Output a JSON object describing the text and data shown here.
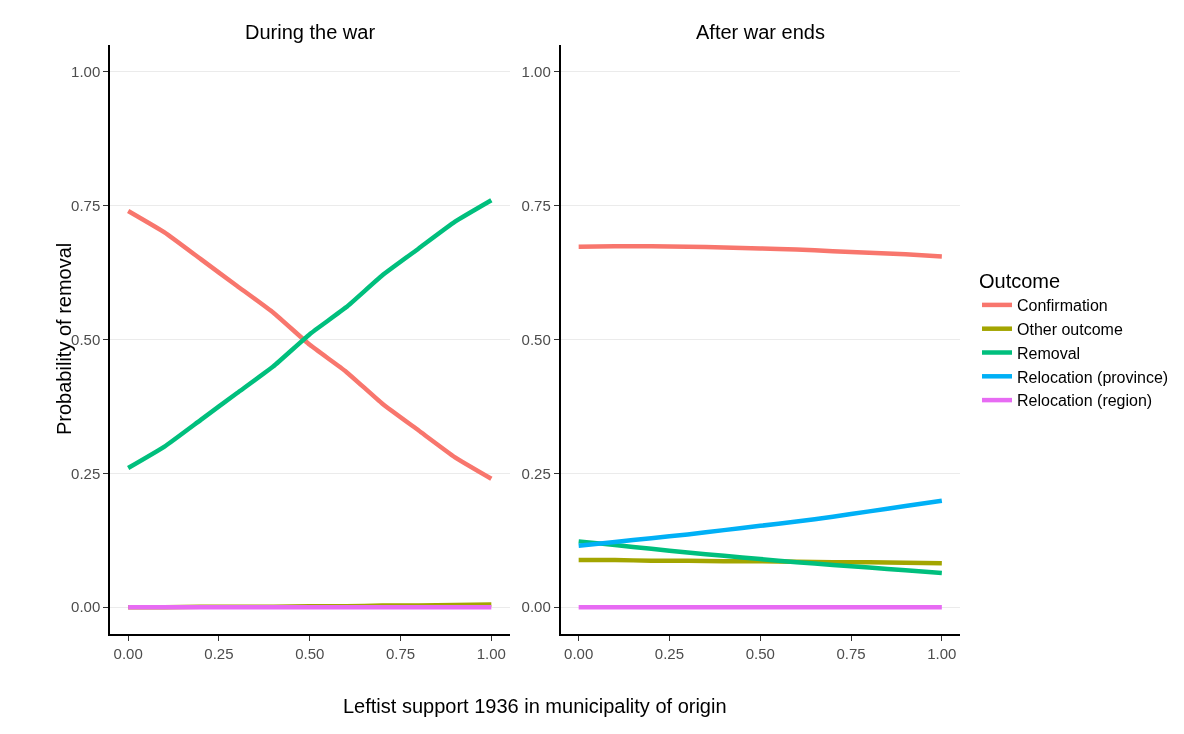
{
  "chart_data": [
    {
      "type": "line",
      "title": "During the war",
      "xlabel": "Leftist support 1936 in municipality of origin",
      "ylabel": "Probability of removal",
      "x": [
        0,
        0.1,
        0.2,
        0.3,
        0.4,
        0.5,
        0.6,
        0.7,
        0.8,
        0.9,
        1.0
      ],
      "series": [
        {
          "name": "Confirmation",
          "color": "#f8766d",
          "values": [
            0.74,
            0.7,
            0.65,
            0.6,
            0.55,
            0.49,
            0.44,
            0.38,
            0.33,
            0.28,
            0.24
          ]
        },
        {
          "name": "Other outcome",
          "color": "#a3a500",
          "values": [
            0.0,
            0.0,
            0.001,
            0.001,
            0.001,
            0.002,
            0.002,
            0.003,
            0.003,
            0.004,
            0.005
          ]
        },
        {
          "name": "Removal",
          "color": "#00bf7d",
          "values": [
            0.26,
            0.3,
            0.35,
            0.4,
            0.45,
            0.51,
            0.56,
            0.62,
            0.67,
            0.72,
            0.76
          ]
        },
        {
          "color": "#00b0f6",
          "values": [
            null,
            null,
            null,
            null,
            null,
            null,
            null,
            null,
            null,
            null,
            null
          ]
        },
        {
          "name": "Relocation (region)",
          "color": "#e76bf3",
          "values": [
            0,
            0,
            0,
            0,
            0,
            0,
            0,
            0,
            0,
            0,
            0
          ]
        }
      ],
      "xlim": [
        -0.05,
        1.05
      ],
      "xticks": [
        {
          "value": 0,
          "label": "0.00"
        },
        {
          "value": 0.25,
          "label": "0.25"
        },
        {
          "value": 0.5,
          "label": "0.50"
        },
        {
          "value": 0.75,
          "label": "0.75"
        },
        {
          "value": 1,
          "label": "1.00"
        }
      ],
      "ylim": [
        -0.05,
        1.05
      ],
      "yticks": [
        {
          "value": 0,
          "label": "0.00"
        },
        {
          "value": 0.25,
          "label": "0.25"
        },
        {
          "value": 0.5,
          "label": "0.50"
        },
        {
          "value": 0.75,
          "label": "0.75"
        },
        {
          "value": 1,
          "label": "1.00"
        }
      ],
      "grid": "y",
      "legend": "right",
      "legend_title": "Outcome",
      "line_style": "solid",
      "marker": "none"
    },
    {
      "type": "line",
      "title": "After war ends",
      "x": [
        0,
        0.1,
        0.2,
        0.3,
        0.4,
        0.5,
        0.6,
        0.7,
        0.8,
        0.9,
        1.0
      ],
      "series": [
        {
          "name": "Confirmation",
          "color": "#f8766d",
          "values": [
            0.673,
            0.674,
            0.674,
            0.673,
            0.672,
            0.67,
            0.668,
            0.665,
            0.662,
            0.659,
            0.655
          ]
        },
        {
          "name": "Other outcome",
          "color": "#a3a500",
          "values": [
            0.088,
            0.088,
            0.087,
            0.087,
            0.086,
            0.086,
            0.085,
            0.084,
            0.084,
            0.083,
            0.082
          ]
        },
        {
          "name": "Removal",
          "color": "#00bf7d",
          "values": [
            0.123,
            0.116,
            0.109,
            0.102,
            0.096,
            0.09,
            0.084,
            0.079,
            0.074,
            0.069,
            0.064
          ]
        },
        {
          "name": "Relocation (province)",
          "color": "#00b0f6",
          "values": [
            0.115,
            0.122,
            0.129,
            0.136,
            0.144,
            0.152,
            0.16,
            0.169,
            0.179,
            0.189,
            0.199
          ]
        },
        {
          "name": "Relocation (region)",
          "color": "#e76bf3",
          "values": [
            0,
            0,
            0,
            0,
            0,
            0,
            0,
            0,
            0,
            0,
            0
          ]
        }
      ],
      "xlim": [
        -0.05,
        1.05
      ],
      "xticks": [
        {
          "value": 0,
          "label": "0.00"
        },
        {
          "value": 0.25,
          "label": "0.25"
        },
        {
          "value": 0.5,
          "label": "0.50"
        },
        {
          "value": 0.75,
          "label": "0.75"
        },
        {
          "value": 1,
          "label": "1.00"
        }
      ],
      "ylim": [
        -0.05,
        1.05
      ],
      "yticks": [
        {
          "value": 0,
          "label": "0.00"
        },
        {
          "value": 0.25,
          "label": "0.25"
        },
        {
          "value": 0.5,
          "label": "0.50"
        },
        {
          "value": 0.75,
          "label": "0.75"
        },
        {
          "value": 1,
          "label": "1.00"
        }
      ],
      "grid": "y",
      "legend": "right",
      "line_style": "solid",
      "marker": "none"
    }
  ]
}
